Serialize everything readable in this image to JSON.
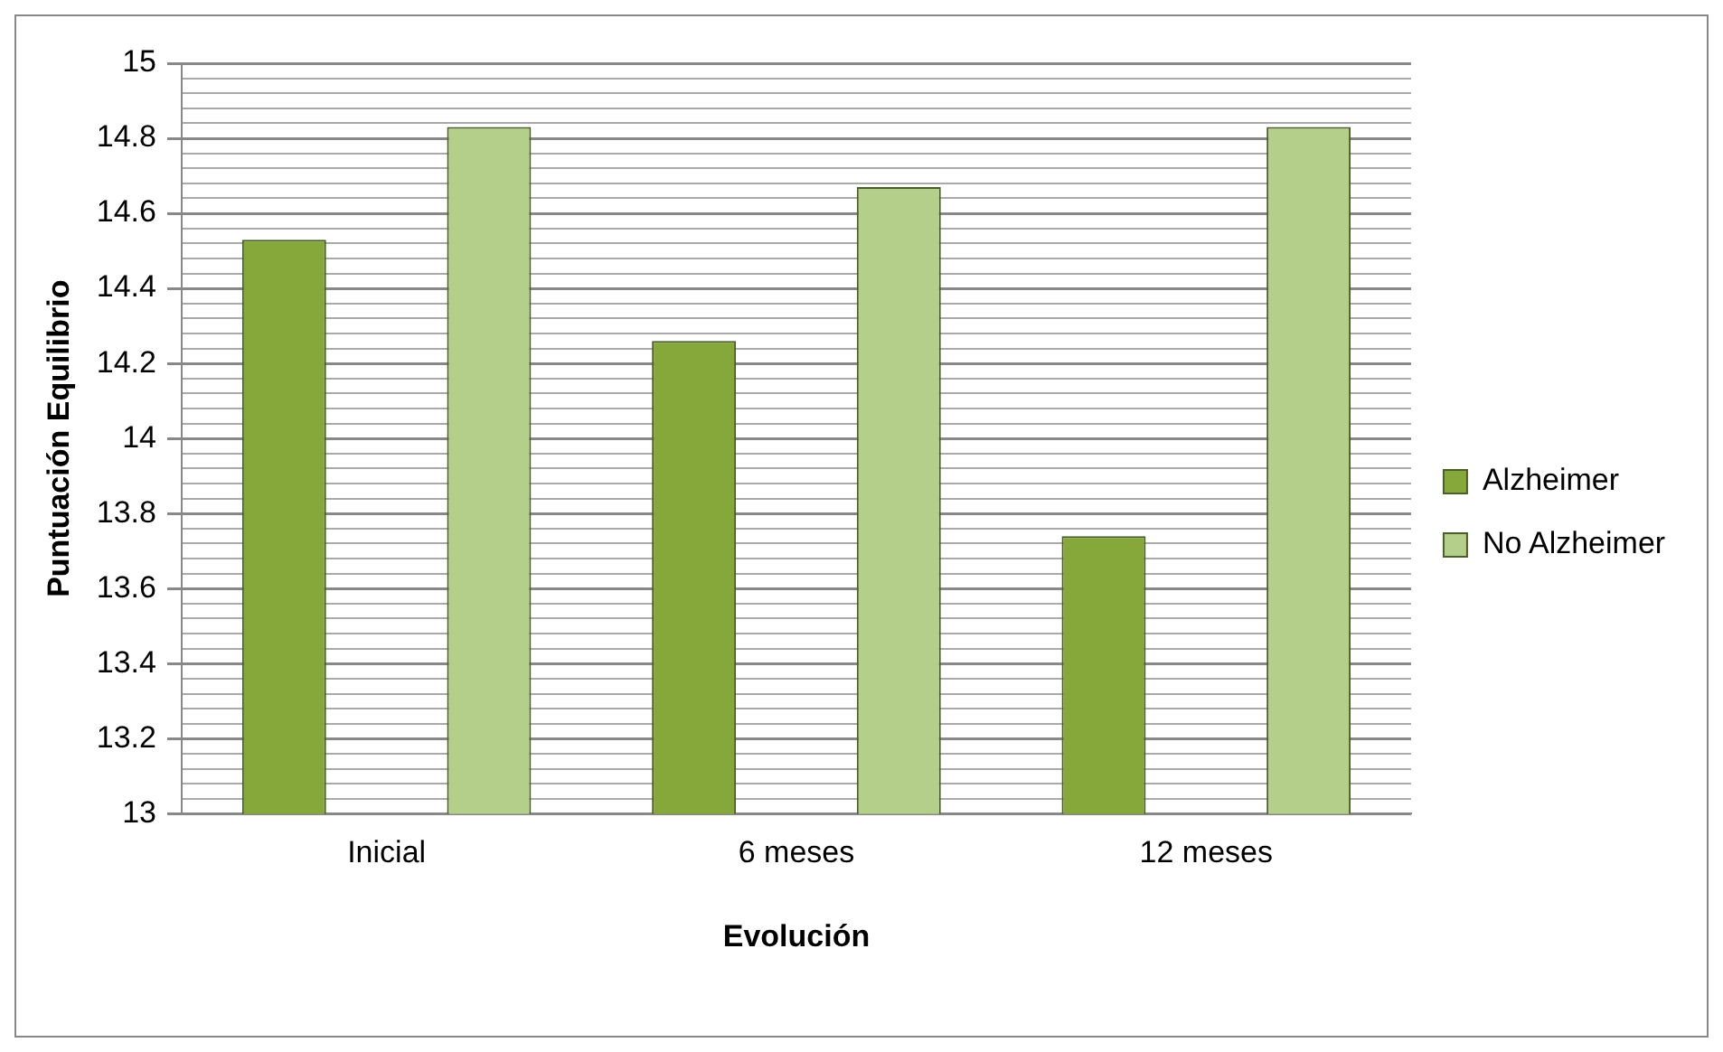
{
  "chart_data": {
    "type": "bar",
    "xlabel": "Evolución",
    "ylabel": "Puntuación Equilibrio",
    "categories": [
      "Inicial",
      "6 meses",
      "12 meses"
    ],
    "series": [
      {
        "name": "Alzheimer",
        "color": "#86a83a",
        "values": [
          14.53,
          14.26,
          13.74
        ]
      },
      {
        "name": "No Alzheimer",
        "color": "#b3cf8a",
        "values": [
          14.83,
          14.67,
          14.83
        ]
      }
    ],
    "ylim": [
      13,
      15
    ],
    "yticks": [
      13,
      {
        "value": 13.04,
        "label": null
      },
      {
        "value": 13.08,
        "label": null
      },
      {
        "value": 13.12,
        "label": null
      },
      {
        "value": 13.16,
        "label": null
      },
      13.2,
      {
        "value": 13.24,
        "label": null
      },
      {
        "value": 13.28,
        "label": null
      },
      {
        "value": 13.32,
        "label": null
      },
      {
        "value": 13.36,
        "label": null
      },
      13.4,
      {
        "value": 13.44,
        "label": null
      },
      {
        "value": 13.48,
        "label": null
      },
      {
        "value": 13.52,
        "label": null
      },
      {
        "value": 13.56,
        "label": null
      },
      13.6,
      {
        "value": 13.64,
        "label": null
      },
      {
        "value": 13.68,
        "label": null
      },
      {
        "value": 13.72,
        "label": null
      },
      {
        "value": 13.76,
        "label": null
      },
      13.8,
      {
        "value": 13.84,
        "label": null
      },
      {
        "value": 13.88,
        "label": null
      },
      {
        "value": 13.92,
        "label": null
      },
      {
        "value": 13.96,
        "label": null
      },
      14,
      {
        "value": 14.04,
        "label": null
      },
      {
        "value": 14.08,
        "label": null
      },
      {
        "value": 14.12,
        "label": null
      },
      {
        "value": 14.16,
        "label": null
      },
      14.2,
      {
        "value": 14.24,
        "label": null
      },
      {
        "value": 14.28,
        "label": null
      },
      {
        "value": 14.32,
        "label": null
      },
      {
        "value": 14.36,
        "label": null
      },
      14.4,
      {
        "value": 14.44,
        "label": null
      },
      {
        "value": 14.48,
        "label": null
      },
      {
        "value": 14.52,
        "label": null
      },
      {
        "value": 14.56,
        "label": null
      },
      14.6,
      {
        "value": 14.64,
        "label": null
      },
      {
        "value": 14.68,
        "label": null
      },
      {
        "value": 14.72,
        "label": null
      },
      {
        "value": 14.76,
        "label": null
      },
      14.8,
      {
        "value": 14.84,
        "label": null
      },
      {
        "value": 14.88,
        "label": null
      },
      {
        "value": 14.92,
        "label": null
      },
      {
        "value": 14.96,
        "label": null
      },
      15
    ],
    "grid": "y",
    "legend": "right"
  }
}
